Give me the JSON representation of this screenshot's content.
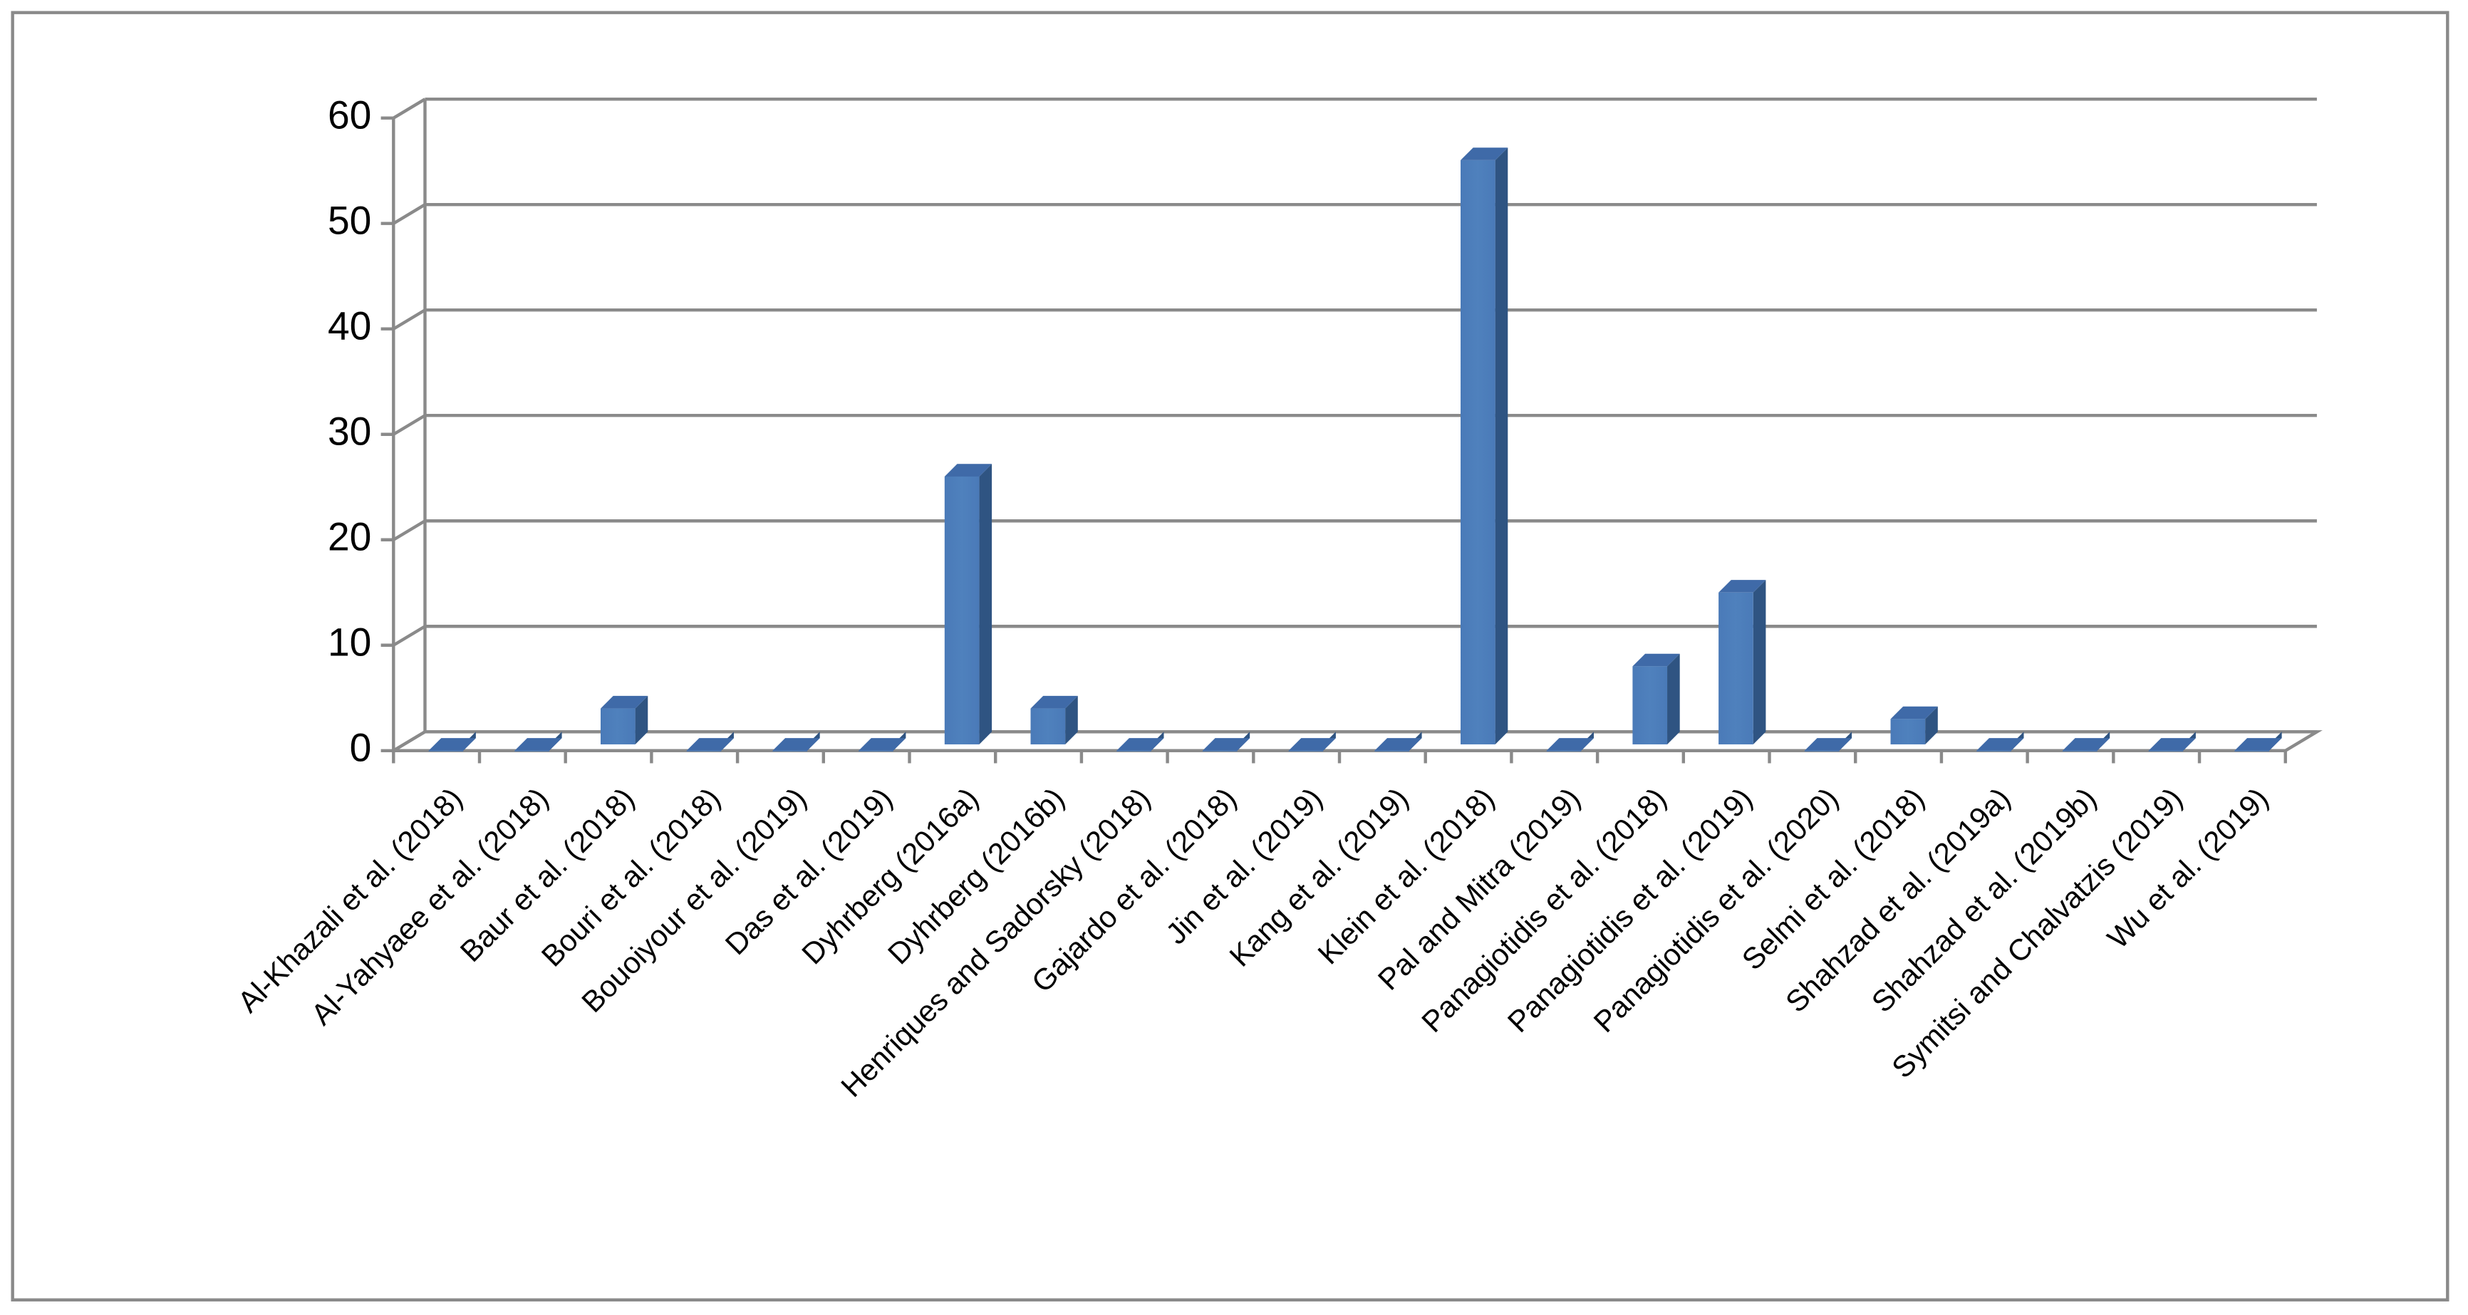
{
  "chart_data": {
    "type": "bar3d",
    "categories": [
      "Al-Khazali et al. (2018)",
      "Al-Yahyaee et al. (2018)",
      "Baur et al. (2018)",
      "Bouri et al. (2018)",
      "Bouoiyour et al. (2019)",
      "Das et al. (2019)",
      "Dyhrberg (2016a)",
      "Dyhrberg (2016b)",
      "Henriques and Sadorsky (2018)",
      "Gajardo et al. (2018)",
      "Jin et al. (2019)",
      "Kang et al. (2019)",
      "Klein et al. (2018)",
      "Pal and Mitra (2019)",
      "Panagiotidis et al. (2018)",
      "Panagiotidis et al. (2019)",
      "Panagiotidis et al. (2020)",
      "Selmi et al. (2018)",
      "Shahzad et al. (2019a)",
      "Shahzad et al. (2019b)",
      "Symitsi and Chalvatzis (2019)",
      "Wu et al. (2019)"
    ],
    "values": [
      0,
      0,
      4,
      0,
      0,
      0,
      26,
      4,
      0,
      0,
      0,
      0,
      56,
      0,
      8,
      15,
      0,
      3,
      0,
      0,
      0,
      0
    ],
    "color": "#4f81bd",
    "ylim": [
      0,
      60
    ],
    "yticks": [
      0,
      10,
      20,
      30,
      40,
      50,
      60
    ],
    "grid": true
  }
}
